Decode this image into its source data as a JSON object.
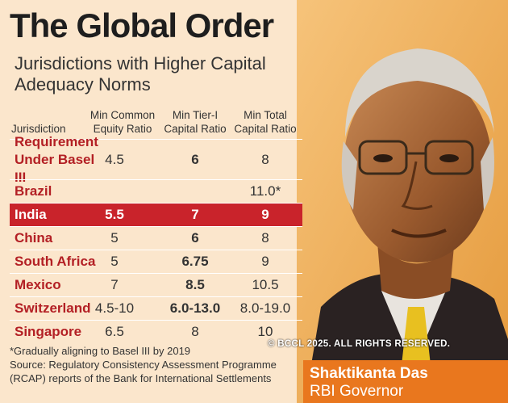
{
  "title": "The Global Order",
  "subtitle": "Jurisdictions with Higher Capital Adequacy Norms",
  "headers": {
    "jurisdiction": "Jurisdiction",
    "equity": "Min Common\nEquity Ratio",
    "tier1": "Min Tier-I\nCapital Ratio",
    "total": "Min Total\nCapital Ratio"
  },
  "rows": [
    {
      "name": "Requirement Under Basel III",
      "equity": "4.5",
      "tier1": "6",
      "total": "8"
    },
    {
      "name": "Brazil",
      "equity": "",
      "tier1": "",
      "total": "11.0*"
    },
    {
      "name": "India",
      "equity": "5.5",
      "tier1": "7",
      "total": "9"
    },
    {
      "name": "China",
      "equity": "5",
      "tier1": "6",
      "total": "8"
    },
    {
      "name": "South Africa",
      "equity": "5",
      "tier1": "6.75",
      "total": "9"
    },
    {
      "name": "Mexico",
      "equity": "7",
      "tier1": "8.5",
      "total": "10.5"
    },
    {
      "name": "Switzerland",
      "equity": "4.5-10",
      "tier1": "6.0-13.0",
      "total": "8.0-19.0"
    },
    {
      "name": "Singapore",
      "equity": "6.5",
      "tier1": "8",
      "total": "10"
    }
  ],
  "footnote": "*Gradually aligning to Basel III by 2019",
  "source": "Source: Regulatory Consistency Assessment Programme (RCAP) reports of the Bank for International Settlements",
  "copyright": "© BCCL 2025. ALL RIGHTS RESERVED.",
  "caption": {
    "name": "Shaktikanta Das",
    "role": "RBI Governor"
  },
  "colors": {
    "background": "#fbe6cc",
    "highlight": "#c9232b",
    "name_text": "#b31f24",
    "caption_bg": "#e9771e"
  }
}
